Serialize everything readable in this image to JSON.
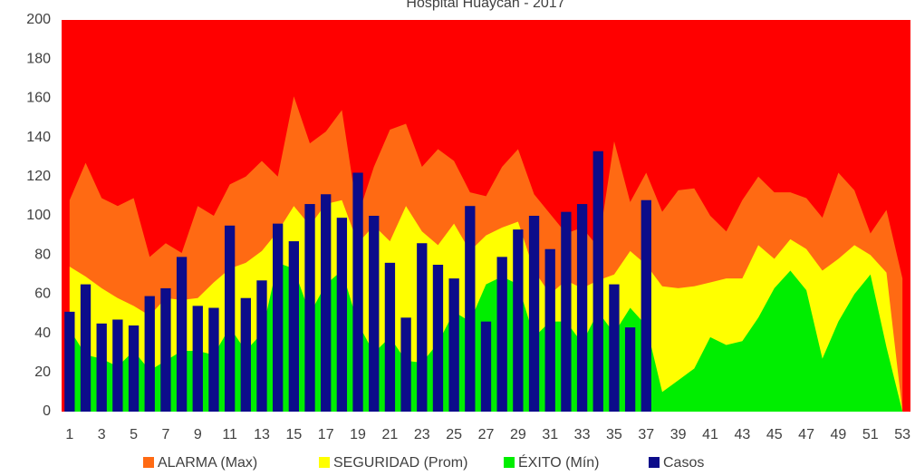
{
  "chart_data": {
    "type": "area",
    "title": "Hospital Huaycán - 2017",
    "categories": [
      1,
      null,
      3,
      null,
      5,
      null,
      7,
      null,
      9,
      null,
      11,
      null,
      13,
      null,
      15,
      null,
      17,
      null,
      19,
      null,
      21,
      null,
      23,
      null,
      25,
      null,
      27,
      null,
      29,
      null,
      31,
      null,
      33,
      null,
      35,
      null,
      37,
      null,
      39,
      null,
      41,
      null,
      43,
      null,
      45,
      null,
      47,
      null,
      49,
      null,
      51,
      null,
      53
    ],
    "plot_color": "#ff0000",
    "series": [
      {
        "name": "ALARMA (Max)",
        "type": "area",
        "color": "#ff6a13",
        "values": [
          108,
          127,
          109,
          105,
          109,
          79,
          86,
          81,
          105,
          100,
          116,
          120,
          128,
          120,
          161,
          137,
          143,
          154,
          100,
          125,
          144,
          147,
          125,
          134,
          128,
          112,
          110,
          125,
          134,
          111,
          101,
          91,
          94,
          84,
          138,
          107,
          122,
          102,
          113,
          114,
          100,
          92,
          108,
          120,
          112,
          112,
          109,
          99,
          122,
          113,
          91,
          103,
          68
        ]
      },
      {
        "name": "SEGURIDAD (Prom)",
        "type": "area",
        "color": "#ffff00",
        "values": [
          74,
          69,
          63,
          58,
          54,
          49,
          58,
          57,
          58,
          66,
          73,
          76,
          82,
          92,
          105,
          95,
          106,
          108,
          86,
          95,
          87,
          105,
          92,
          85,
          96,
          82,
          90,
          94,
          97,
          72,
          60,
          67,
          63,
          67,
          70,
          82,
          75,
          64,
          63,
          64,
          66,
          68,
          68,
          85,
          78,
          88,
          83,
          72,
          78,
          85,
          80,
          71,
          0
        ]
      },
      {
        "name": "ÉXITO (Mín)",
        "type": "area",
        "color": "#00ee00",
        "values": [
          42,
          29,
          27,
          23,
          31,
          21,
          26,
          31,
          31,
          29,
          43,
          31,
          40,
          76,
          73,
          50,
          65,
          72,
          45,
          30,
          38,
          26,
          25,
          35,
          51,
          46,
          65,
          69,
          65,
          38,
          46,
          46,
          35,
          51,
          40,
          53,
          44,
          10,
          16,
          22,
          38,
          34,
          36,
          48,
          63,
          72,
          62,
          27,
          46,
          60,
          70,
          33,
          0
        ]
      },
      {
        "name": "Casos",
        "type": "bar",
        "color": "#0c0c8a",
        "values": [
          51,
          65,
          45,
          47,
          44,
          59,
          63,
          79,
          54,
          53,
          95,
          58,
          67,
          96,
          87,
          106,
          111,
          99,
          122,
          100,
          76,
          48,
          86,
          75,
          68,
          105,
          46,
          79,
          93,
          100,
          83,
          102,
          106,
          133,
          65,
          43,
          108,
          null,
          null,
          null,
          null,
          null,
          null,
          null,
          null,
          null,
          null,
          null,
          null,
          null,
          null,
          null,
          null
        ]
      }
    ],
    "ylim": [
      0,
      200
    ],
    "yticks": [
      0,
      20,
      40,
      60,
      80,
      100,
      120,
      140,
      160,
      180,
      200
    ],
    "grid": false,
    "legend": "bottom"
  }
}
